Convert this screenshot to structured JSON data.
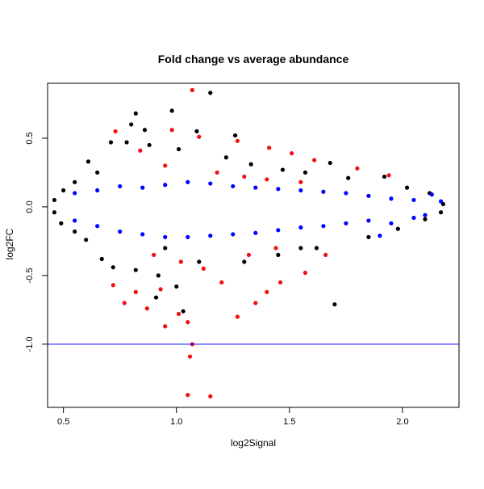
{
  "chart_data": {
    "type": "scatter",
    "title": "Fold change vs average abundance",
    "xlabel": "log2Signal",
    "ylabel": "log2FC",
    "xlim": [
      0.43,
      2.25
    ],
    "ylim": [
      -1.46,
      0.9
    ],
    "x_ticks": [
      0.5,
      1.0,
      1.5,
      2.0
    ],
    "x_tick_labels": [
      "0.5",
      "1.0",
      "1.5",
      "2.0"
    ],
    "y_ticks": [
      -1.0,
      -0.5,
      0.0,
      0.5
    ],
    "y_tick_labels": [
      "-1.0",
      "-0.5",
      "0.0",
      "0.5"
    ],
    "reference_lines": [
      {
        "axis": "y",
        "value": -1.0,
        "color": "#0000ff"
      }
    ],
    "grid": false,
    "legend": "none",
    "colors": {
      "black": "#000000",
      "blue": "#0000ff",
      "red": "#ee1111"
    },
    "series": [
      {
        "color": "#000000",
        "points": [
          [
            0.82,
            0.68
          ],
          [
            0.98,
            0.7
          ],
          [
            1.09,
            0.55
          ],
          [
            1.15,
            0.83
          ],
          [
            0.8,
            0.6
          ],
          [
            0.86,
            0.56
          ],
          [
            0.71,
            0.47
          ],
          [
            0.78,
            0.47
          ],
          [
            0.88,
            0.45
          ],
          [
            1.01,
            0.42
          ],
          [
            1.22,
            0.36
          ],
          [
            1.26,
            0.52
          ],
          [
            1.33,
            0.31
          ],
          [
            1.47,
            0.27
          ],
          [
            1.57,
            0.25
          ],
          [
            1.68,
            0.32
          ],
          [
            1.76,
            0.21
          ],
          [
            1.92,
            0.22
          ],
          [
            2.02,
            0.14
          ],
          [
            2.12,
            0.1
          ],
          [
            2.18,
            0.02
          ],
          [
            0.61,
            0.33
          ],
          [
            0.65,
            0.25
          ],
          [
            0.55,
            0.18
          ],
          [
            0.5,
            0.12
          ],
          [
            0.46,
            0.05
          ],
          [
            0.46,
            -0.04
          ],
          [
            0.49,
            -0.12
          ],
          [
            0.55,
            -0.18
          ],
          [
            0.6,
            -0.24
          ],
          [
            0.67,
            -0.38
          ],
          [
            0.72,
            -0.44
          ],
          [
            0.82,
            -0.46
          ],
          [
            0.92,
            -0.5
          ],
          [
            1.0,
            -0.58
          ],
          [
            0.91,
            -0.66
          ],
          [
            1.03,
            -0.76
          ],
          [
            1.3,
            -0.4
          ],
          [
            1.45,
            -0.35
          ],
          [
            1.7,
            -0.71
          ],
          [
            1.62,
            -0.3
          ],
          [
            1.85,
            -0.22
          ],
          [
            1.98,
            -0.16
          ],
          [
            2.1,
            -0.09
          ],
          [
            2.17,
            -0.04
          ],
          [
            1.55,
            -0.3
          ],
          [
            1.1,
            -0.4
          ],
          [
            0.95,
            -0.3
          ]
        ]
      },
      {
        "color": "#0000ff",
        "points": [
          [
            0.55,
            0.1
          ],
          [
            0.65,
            0.12
          ],
          [
            0.75,
            0.15
          ],
          [
            0.85,
            0.14
          ],
          [
            0.95,
            0.16
          ],
          [
            1.05,
            0.18
          ],
          [
            1.15,
            0.17
          ],
          [
            1.25,
            0.15
          ],
          [
            1.35,
            0.14
          ],
          [
            1.45,
            0.13
          ],
          [
            1.55,
            0.12
          ],
          [
            1.65,
            0.11
          ],
          [
            1.75,
            0.1
          ],
          [
            1.85,
            0.08
          ],
          [
            1.95,
            0.06
          ],
          [
            2.05,
            0.05
          ],
          [
            2.13,
            0.09
          ],
          [
            2.17,
            0.04
          ],
          [
            0.55,
            -0.1
          ],
          [
            0.65,
            -0.14
          ],
          [
            0.75,
            -0.18
          ],
          [
            0.85,
            -0.2
          ],
          [
            0.95,
            -0.22
          ],
          [
            1.05,
            -0.22
          ],
          [
            1.15,
            -0.21
          ],
          [
            1.25,
            -0.2
          ],
          [
            1.35,
            -0.19
          ],
          [
            1.45,
            -0.17
          ],
          [
            1.55,
            -0.15
          ],
          [
            1.65,
            -0.14
          ],
          [
            1.75,
            -0.12
          ],
          [
            1.85,
            -0.1
          ],
          [
            1.95,
            -0.12
          ],
          [
            2.05,
            -0.08
          ],
          [
            2.1,
            -0.06
          ],
          [
            1.9,
            -0.21
          ]
        ]
      },
      {
        "color": "#ee1111",
        "points": [
          [
            1.07,
            0.85
          ],
          [
            0.98,
            0.56
          ],
          [
            1.1,
            0.51
          ],
          [
            1.27,
            0.48
          ],
          [
            0.84,
            0.41
          ],
          [
            0.73,
            0.55
          ],
          [
            1.41,
            0.43
          ],
          [
            1.51,
            0.39
          ],
          [
            1.61,
            0.34
          ],
          [
            1.8,
            0.28
          ],
          [
            1.94,
            0.23
          ],
          [
            0.95,
            0.3
          ],
          [
            1.18,
            0.25
          ],
          [
            1.3,
            0.22
          ],
          [
            1.4,
            0.2
          ],
          [
            1.55,
            0.18
          ],
          [
            0.72,
            -0.57
          ],
          [
            0.77,
            -0.7
          ],
          [
            0.82,
            -0.62
          ],
          [
            0.87,
            -0.74
          ],
          [
            0.93,
            -0.6
          ],
          [
            0.95,
            -0.87
          ],
          [
            1.01,
            -0.78
          ],
          [
            1.05,
            -0.84
          ],
          [
            1.07,
            -1.0
          ],
          [
            1.06,
            -1.09
          ],
          [
            1.05,
            -1.37
          ],
          [
            1.15,
            -1.38
          ],
          [
            1.27,
            -0.8
          ],
          [
            1.35,
            -0.7
          ],
          [
            1.4,
            -0.62
          ],
          [
            1.46,
            -0.55
          ],
          [
            1.57,
            -0.48
          ],
          [
            1.66,
            -0.35
          ],
          [
            1.2,
            -0.55
          ],
          [
            1.12,
            -0.45
          ],
          [
            1.02,
            -0.4
          ],
          [
            0.9,
            -0.35
          ],
          [
            1.32,
            -0.35
          ],
          [
            1.44,
            -0.3
          ]
        ]
      }
    ]
  }
}
